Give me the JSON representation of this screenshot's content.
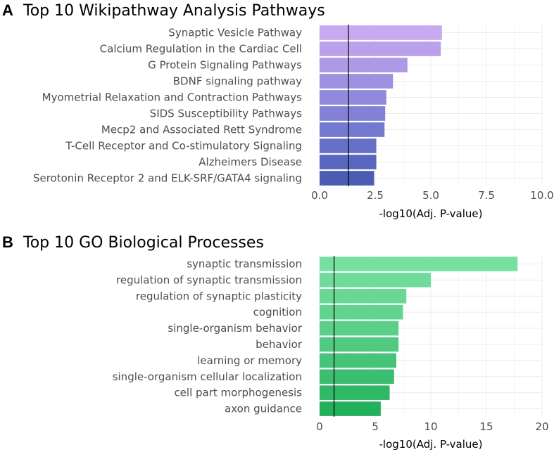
{
  "chart_data": [
    {
      "type": "bar",
      "orientation": "horizontal",
      "panel_label": "A",
      "title": "Top 10 Wikipathway Analysis Pathways",
      "xlabel": "-log10(Adj. P-value)",
      "xlim": [
        0,
        10
      ],
      "x_ticks": [
        "0.0",
        "2.5",
        "5.0",
        "7.5",
        "10.0"
      ],
      "x_tick_values": [
        0,
        2.5,
        5,
        7.5,
        10
      ],
      "reference_line": 1.3,
      "grid": true,
      "categories": [
        "Synaptic Vesicle Pathway",
        "Calcium Regulation in the Cardiac Cell",
        "G Protein Signaling Pathways",
        "BDNF signaling pathway",
        "Myometrial Relaxation and Contraction Pathways",
        "SIDS Susceptibility Pathways",
        "Mecp2 and Associated Rett Syndrome",
        "T-Cell Receptor and Co-stimulatory Signaling",
        "Alzheimers Disease",
        "Serotonin Receptor 2 and ELK-SRF/GATA4 signaling"
      ],
      "values": [
        5.5,
        5.45,
        3.95,
        3.3,
        3.0,
        2.95,
        2.92,
        2.55,
        2.55,
        2.45
      ],
      "colors": [
        "#c8a8ee",
        "#bba1ea",
        "#ad99e6",
        "#9f91e1",
        "#9089dc",
        "#8281d6",
        "#7479cf",
        "#6570c6",
        "#5867bd",
        "#4c5cb2"
      ]
    },
    {
      "type": "bar",
      "orientation": "horizontal",
      "panel_label": "B",
      "title": "Top 10 GO Biological Processes",
      "xlabel": "-log10(Adj. P-value)",
      "xlim": [
        0,
        20
      ],
      "x_ticks": [
        "0",
        "5",
        "10",
        "15",
        "20"
      ],
      "x_tick_values": [
        0,
        5,
        10,
        15,
        20
      ],
      "reference_line": 1.3,
      "grid": true,
      "categories": [
        "synaptic transmission",
        "regulation of synaptic transmission",
        "regulation of synaptic plasticity",
        "cognition",
        "single-organism behavior",
        "behavior",
        "learning or memory",
        "single-organism cellular localization",
        "cell part morphogenesis",
        "axon guidance"
      ],
      "values": [
        17.8,
        10.0,
        7.8,
        7.5,
        7.1,
        7.1,
        6.9,
        6.7,
        6.3,
        5.5
      ],
      "colors": [
        "#77e0a1",
        "#70dc9b",
        "#69d895",
        "#61d48f",
        "#59cf88",
        "#50ca81",
        "#46c479",
        "#3cbe70",
        "#31b867",
        "#22b05b"
      ]
    }
  ]
}
